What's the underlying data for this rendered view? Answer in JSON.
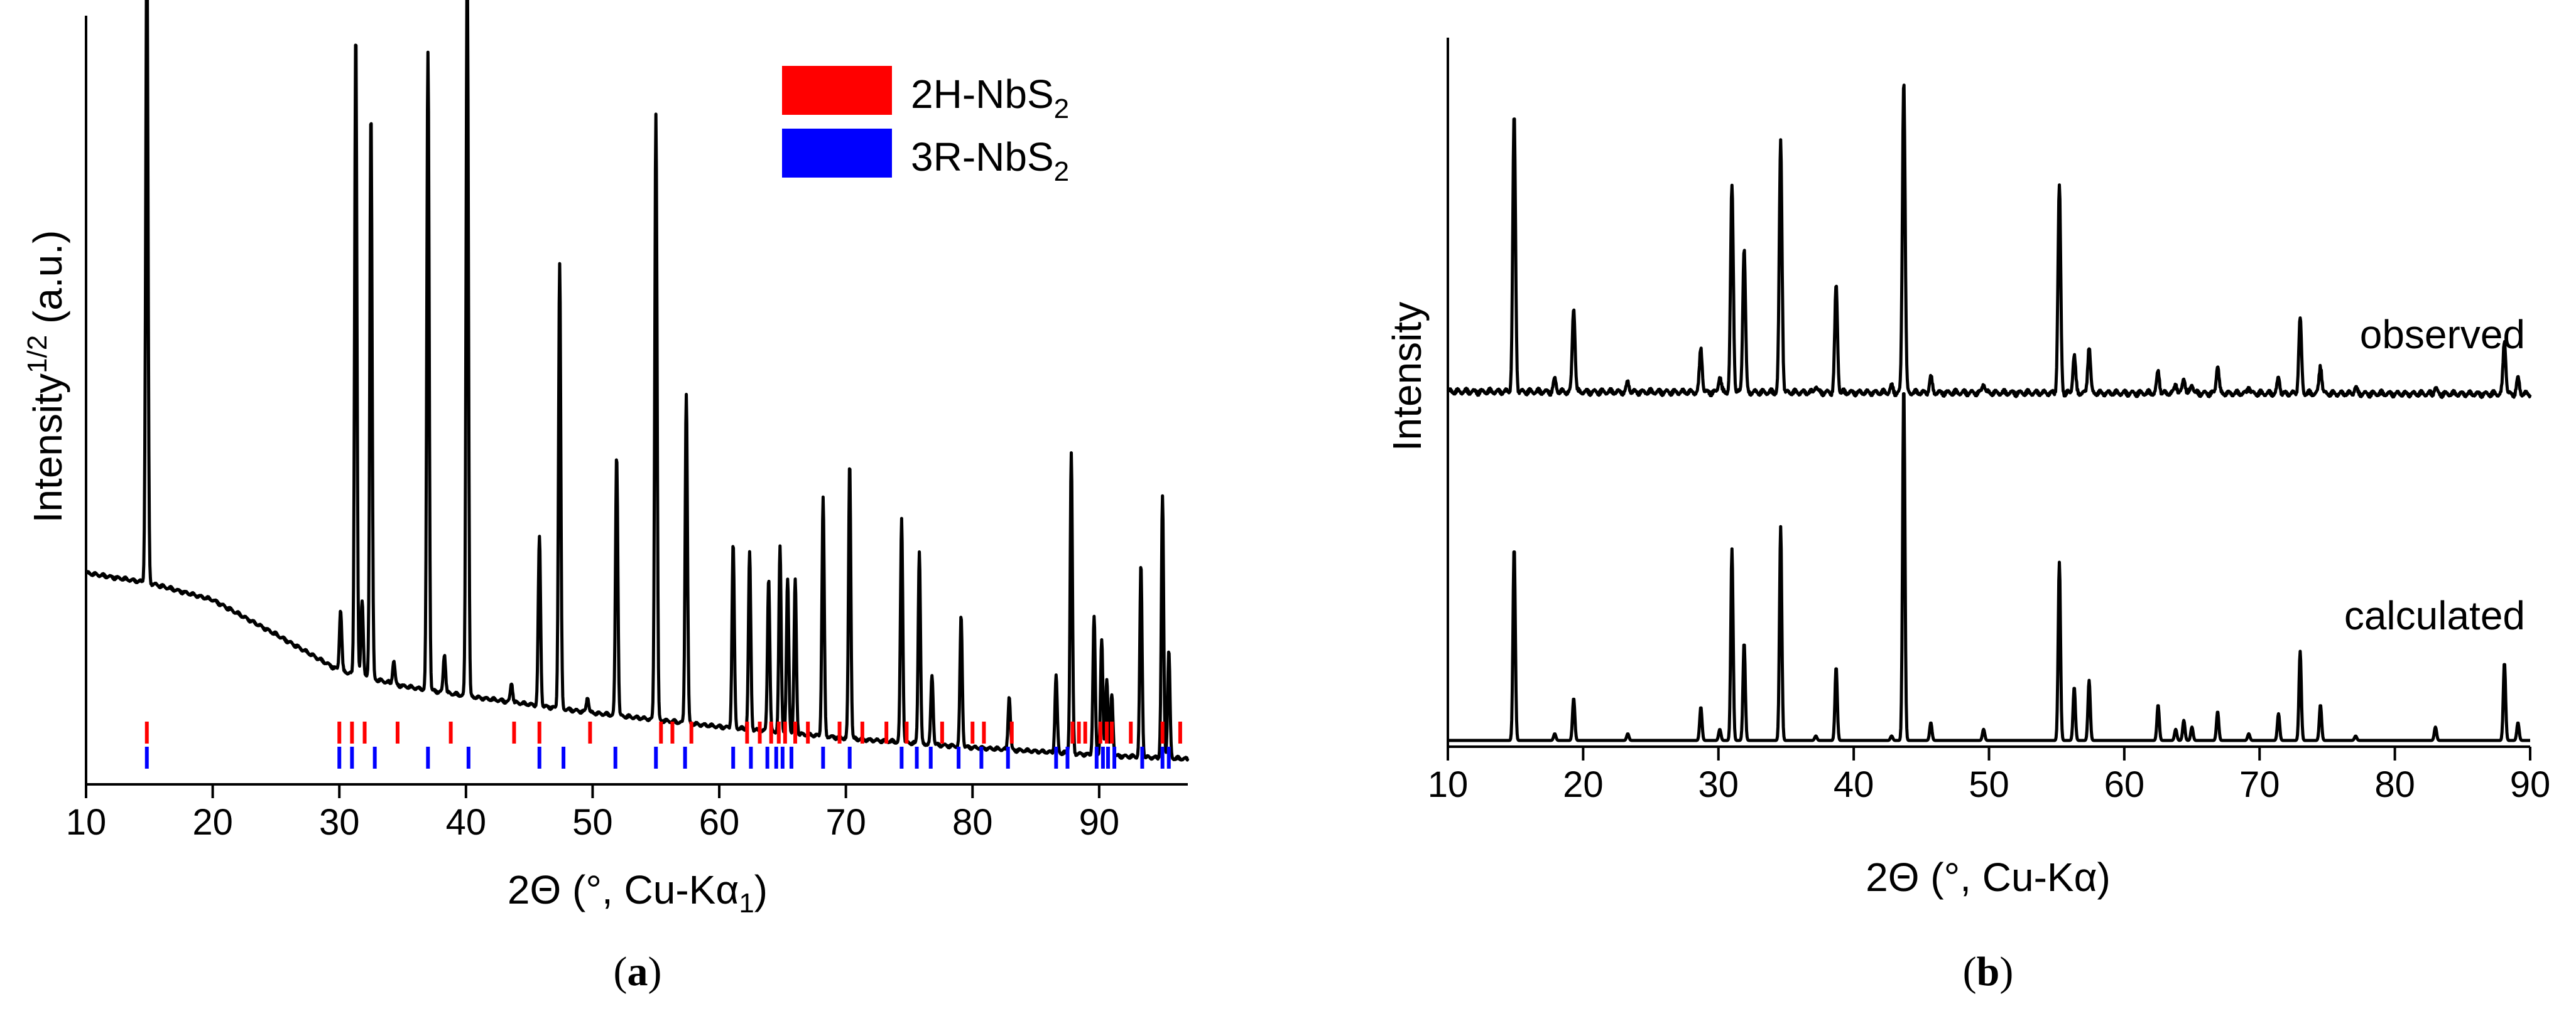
{
  "chart_data": [
    {
      "panel": "a",
      "type": "line",
      "panel_label": "a",
      "xlabel": "2Θ (°, Cu-Kα1)",
      "xlabel_parts": {
        "main": "2Θ (°, Cu-Kα",
        "sub": "1",
        "close": ")"
      },
      "ylabel": "Intensity^1/2 (a.u.)",
      "ylabel_parts": {
        "main": "Intensity",
        "sup": "1/2",
        "rest": " (a.u.)"
      },
      "xlim": [
        10,
        97
      ],
      "ylim": [
        0,
        1
      ],
      "xticks": [
        10,
        20,
        30,
        40,
        50,
        60,
        70,
        80,
        90
      ],
      "legend": [
        {
          "label": "2H-NbS",
          "sub": "2",
          "color": "#ff0000"
        },
        {
          "label": "3R-NbS",
          "sub": "2",
          "color": "#0000ff"
        }
      ],
      "background": [
        [
          10,
          0.275
        ],
        [
          15,
          0.262
        ],
        [
          20,
          0.24
        ],
        [
          25,
          0.195
        ],
        [
          30,
          0.148
        ],
        [
          35,
          0.128
        ],
        [
          40,
          0.115
        ],
        [
          50,
          0.093
        ],
        [
          60,
          0.075
        ],
        [
          70,
          0.06
        ],
        [
          80,
          0.048
        ],
        [
          90,
          0.038
        ],
        [
          97,
          0.033
        ]
      ],
      "peaks": [
        [
          14.8,
          0.84
        ],
        [
          30.1,
          0.08
        ],
        [
          31.3,
          0.84
        ],
        [
          31.8,
          0.1
        ],
        [
          32.5,
          0.74
        ],
        [
          34.3,
          0.03
        ],
        [
          37.0,
          0.83
        ],
        [
          38.3,
          0.05
        ],
        [
          40.1,
          0.97
        ],
        [
          43.6,
          0.025
        ],
        [
          45.8,
          0.22
        ],
        [
          47.4,
          0.58
        ],
        [
          49.6,
          0.02
        ],
        [
          51.9,
          0.34
        ],
        [
          55.0,
          0.79
        ],
        [
          57.4,
          0.43
        ],
        [
          61.1,
          0.24
        ],
        [
          62.4,
          0.23
        ],
        [
          63.9,
          0.2
        ],
        [
          64.8,
          0.24
        ],
        [
          65.4,
          0.2
        ],
        [
          66.0,
          0.2
        ],
        [
          68.2,
          0.31
        ],
        [
          70.3,
          0.36
        ],
        [
          74.4,
          0.29
        ],
        [
          75.8,
          0.25
        ],
        [
          76.8,
          0.09
        ],
        [
          79.1,
          0.17
        ],
        [
          82.9,
          0.07
        ],
        [
          86.6,
          0.1
        ],
        [
          87.8,
          0.39
        ],
        [
          89.6,
          0.18
        ],
        [
          90.2,
          0.15
        ],
        [
          90.6,
          0.1
        ],
        [
          91.0,
          0.08
        ],
        [
          93.3,
          0.25
        ],
        [
          95.0,
          0.34
        ],
        [
          95.5,
          0.14
        ]
      ],
      "ticks_2H": [
        14.8,
        30.0,
        31.0,
        32.0,
        34.6,
        38.8,
        43.8,
        45.8,
        49.8,
        55.4,
        56.3,
        57.8,
        62.2,
        63.2,
        64.1,
        64.7,
        65.2,
        66.0,
        67.0,
        69.5,
        71.3,
        73.2,
        74.8,
        77.6,
        80.0,
        80.9,
        83.1,
        87.9,
        88.4,
        88.9,
        90.1,
        90.6,
        91.0,
        92.5,
        95.0,
        96.4
      ],
      "ticks_3R": [
        14.8,
        30.0,
        31.0,
        32.8,
        37.0,
        40.2,
        45.8,
        47.7,
        51.8,
        55.0,
        57.3,
        61.1,
        62.5,
        63.8,
        64.5,
        65.0,
        65.7,
        68.2,
        70.3,
        74.4,
        75.6,
        76.7,
        78.9,
        80.7,
        82.8,
        86.6,
        87.5,
        89.8,
        90.3,
        90.7,
        91.2,
        93.4,
        95.0,
        95.5
      ]
    },
    {
      "panel": "b",
      "type": "line",
      "panel_label": "b",
      "xlabel": "2Θ (°, Cu-Kα)",
      "ylabel": "Intensity",
      "xlim": [
        10,
        90
      ],
      "ylim": [
        0,
        1
      ],
      "xticks": [
        10,
        20,
        30,
        40,
        50,
        60,
        70,
        80,
        90
      ],
      "annotations": [
        "observed",
        "calculated"
      ],
      "peaks_major": [
        [
          14.9,
          0.88,
          0.87
        ],
        [
          19.3,
          0.27,
          0.19
        ],
        [
          28.7,
          0.14,
          0.15
        ],
        [
          31.0,
          0.66,
          0.86
        ],
        [
          31.9,
          0.46,
          0.44
        ],
        [
          34.6,
          0.8,
          0.96
        ],
        [
          38.7,
          0.34,
          0.33
        ],
        [
          43.7,
          1.0,
          1.6
        ],
        [
          55.2,
          0.66,
          0.8
        ],
        [
          56.3,
          0.12,
          0.24
        ],
        [
          57.4,
          0.15,
          0.27
        ],
        [
          62.5,
          0.07,
          0.16
        ],
        [
          64.4,
          0.05,
          0.09
        ],
        [
          66.9,
          0.09,
          0.13
        ],
        [
          71.4,
          0.05,
          0.12
        ],
        [
          73.0,
          0.24,
          0.4
        ],
        [
          74.5,
          0.09,
          0.16
        ],
        [
          88.1,
          0.17,
          0.35
        ],
        [
          89.1,
          0.05,
          0.08
        ]
      ],
      "peaks_minor": [
        [
          17.9,
          0.04,
          0.03
        ],
        [
          23.3,
          0.03,
          0.03
        ],
        [
          30.1,
          0.05,
          0.05
        ],
        [
          37.2,
          0.02,
          0.02
        ],
        [
          42.8,
          0.02,
          0.02
        ],
        [
          45.7,
          0.05,
          0.08
        ],
        [
          49.6,
          0.03,
          0.05
        ],
        [
          63.8,
          0.03,
          0.05
        ],
        [
          65.0,
          0.03,
          0.06
        ],
        [
          69.2,
          0.02,
          0.03
        ],
        [
          77.1,
          0.02,
          0.02
        ],
        [
          83.0,
          0.02,
          0.06
        ]
      ]
    }
  ]
}
